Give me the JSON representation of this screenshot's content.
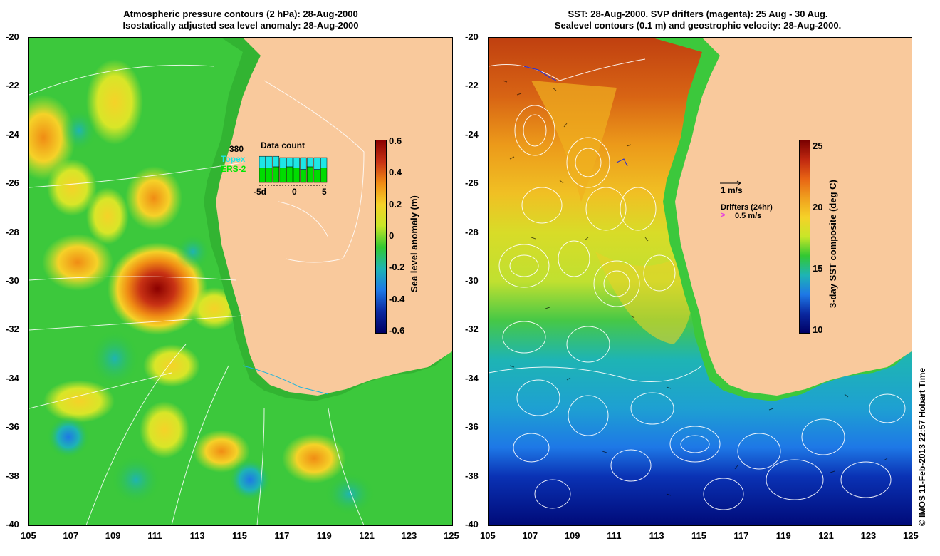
{
  "left": {
    "title1": "Atmospheric pressure contours (2 hPa): 28-Aug-2000",
    "title2": "Isostatically adjusted sea level anomaly: 28-Aug-2000",
    "colorbar": {
      "label": "Sea level anomaly (m)",
      "ticks": [
        "0.6",
        "0.4",
        "0.2",
        "0",
        "-0.2",
        "-0.4",
        "-0.6"
      ],
      "colors": [
        "#8b0000",
        "#c83214",
        "#f08c14",
        "#f5d228",
        "#c8e628",
        "#32c832",
        "#1eb4b4",
        "#1e78e6",
        "#0a28a0",
        "#000064"
      ]
    },
    "inset": {
      "title": "Data count",
      "count": "380",
      "series1": "Topex",
      "series2": "ERS-2",
      "xlabels": [
        "-5d",
        "0",
        "5"
      ],
      "topex_values": [
        0.45,
        0.45,
        0.4,
        0.4,
        0.35,
        0.4,
        0.45,
        0.35,
        0.45,
        0.4
      ],
      "ers_values": [
        0.55,
        0.55,
        0.6,
        0.55,
        0.6,
        0.55,
        0.5,
        0.6,
        0.5,
        0.55
      ]
    }
  },
  "right": {
    "title1": "SST: 28-Aug-2000. SVP drifters (magenta): 25 Aug - 30 Aug.",
    "title2": "Sealevel contours (0.1 m) and geostrophic velocity: 28-Aug-2000.",
    "colorbar": {
      "label": "3-day SST composite (deg C)",
      "ticks": [
        "25",
        "20",
        "15",
        "10"
      ],
      "colors": [
        "#7a0000",
        "#c02810",
        "#e86414",
        "#f0a01e",
        "#f5d228",
        "#c8e628",
        "#32c832",
        "#1eb4b4",
        "#1e78e6",
        "#0a28a0",
        "#000064"
      ]
    },
    "velocity_scale": "1 m/s",
    "drifters_title": "Drifters (24hr)",
    "drifters_scale": "0.5 m/s"
  },
  "lat_labels": [
    "-20",
    "-22",
    "-24",
    "-26",
    "-28",
    "-30",
    "-32",
    "-34",
    "-36",
    "-38",
    "-40"
  ],
  "lon_labels": [
    "105",
    "107",
    "109",
    "111",
    "113",
    "115",
    "117",
    "119",
    "121",
    "123",
    "125"
  ],
  "credit": "© IMOS 11-Feb-2013 22:57 Hobart Time",
  "colors": {
    "land": "#f9c99c",
    "coast_fill": "#32c832"
  }
}
